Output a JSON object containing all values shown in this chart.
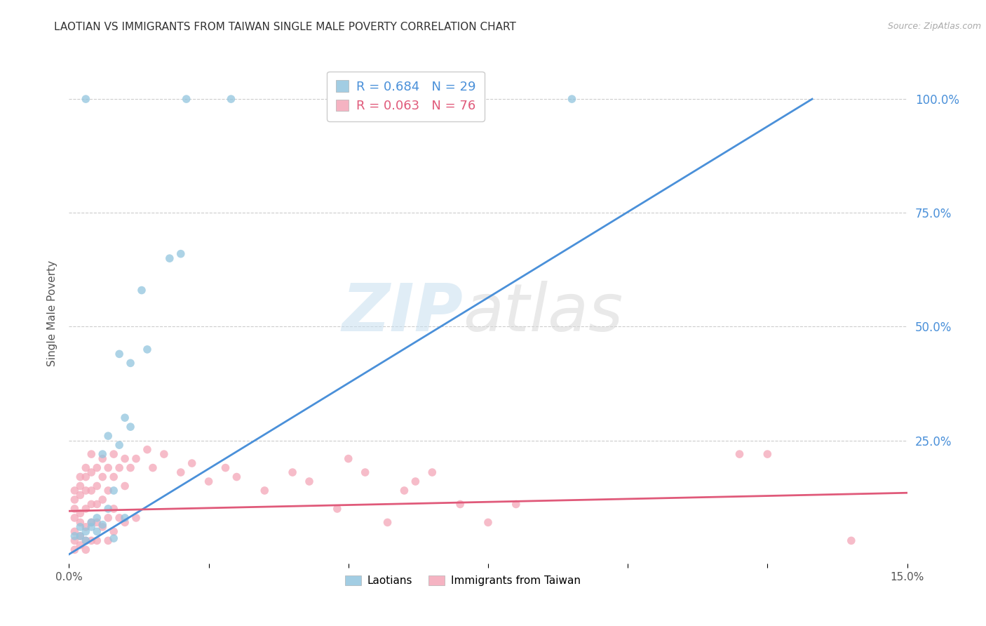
{
  "title": "LAOTIAN VS IMMIGRANTS FROM TAIWAN SINGLE MALE POVERTY CORRELATION CHART",
  "source": "Source: ZipAtlas.com",
  "ylabel": "Single Male Poverty",
  "ytick_labels": [
    "100.0%",
    "75.0%",
    "50.0%",
    "25.0%"
  ],
  "ytick_values": [
    1.0,
    0.75,
    0.5,
    0.25
  ],
  "xlim": [
    0.0,
    0.15
  ],
  "ylim": [
    -0.02,
    1.08
  ],
  "legend": {
    "blue_R": "R = 0.684",
    "blue_N": "N = 29",
    "pink_R": "R = 0.063",
    "pink_N": "N = 76",
    "label1": "Laotians",
    "label2": "Immigrants from Taiwan"
  },
  "blue_scatter": [
    [
      0.001,
      0.04
    ],
    [
      0.002,
      0.06
    ],
    [
      0.002,
      0.04
    ],
    [
      0.003,
      0.05
    ],
    [
      0.003,
      0.03
    ],
    [
      0.003,
      1.0
    ],
    [
      0.004,
      0.07
    ],
    [
      0.004,
      0.06
    ],
    [
      0.005,
      0.05
    ],
    [
      0.005,
      0.08
    ],
    [
      0.006,
      0.065
    ],
    [
      0.006,
      0.22
    ],
    [
      0.007,
      0.1
    ],
    [
      0.007,
      0.26
    ],
    [
      0.008,
      0.035
    ],
    [
      0.008,
      0.14
    ],
    [
      0.009,
      0.44
    ],
    [
      0.009,
      0.24
    ],
    [
      0.01,
      0.3
    ],
    [
      0.01,
      0.08
    ],
    [
      0.011,
      0.42
    ],
    [
      0.011,
      0.28
    ],
    [
      0.013,
      0.58
    ],
    [
      0.014,
      0.45
    ],
    [
      0.018,
      0.65
    ],
    [
      0.02,
      0.66
    ],
    [
      0.021,
      1.0
    ],
    [
      0.029,
      1.0
    ],
    [
      0.09,
      1.0
    ]
  ],
  "pink_scatter": [
    [
      0.001,
      0.14
    ],
    [
      0.001,
      0.12
    ],
    [
      0.001,
      0.1
    ],
    [
      0.001,
      0.08
    ],
    [
      0.001,
      0.05
    ],
    [
      0.001,
      0.03
    ],
    [
      0.001,
      0.01
    ],
    [
      0.002,
      0.17
    ],
    [
      0.002,
      0.15
    ],
    [
      0.002,
      0.13
    ],
    [
      0.002,
      0.09
    ],
    [
      0.002,
      0.07
    ],
    [
      0.002,
      0.04
    ],
    [
      0.002,
      0.02
    ],
    [
      0.003,
      0.19
    ],
    [
      0.003,
      0.17
    ],
    [
      0.003,
      0.14
    ],
    [
      0.003,
      0.1
    ],
    [
      0.003,
      0.06
    ],
    [
      0.003,
      0.03
    ],
    [
      0.003,
      0.01
    ],
    [
      0.004,
      0.22
    ],
    [
      0.004,
      0.18
    ],
    [
      0.004,
      0.14
    ],
    [
      0.004,
      0.11
    ],
    [
      0.004,
      0.07
    ],
    [
      0.004,
      0.03
    ],
    [
      0.005,
      0.19
    ],
    [
      0.005,
      0.15
    ],
    [
      0.005,
      0.11
    ],
    [
      0.005,
      0.07
    ],
    [
      0.005,
      0.03
    ],
    [
      0.006,
      0.21
    ],
    [
      0.006,
      0.17
    ],
    [
      0.006,
      0.12
    ],
    [
      0.006,
      0.06
    ],
    [
      0.007,
      0.19
    ],
    [
      0.007,
      0.14
    ],
    [
      0.007,
      0.08
    ],
    [
      0.007,
      0.03
    ],
    [
      0.008,
      0.22
    ],
    [
      0.008,
      0.17
    ],
    [
      0.008,
      0.1
    ],
    [
      0.008,
      0.05
    ],
    [
      0.009,
      0.19
    ],
    [
      0.009,
      0.08
    ],
    [
      0.01,
      0.21
    ],
    [
      0.01,
      0.15
    ],
    [
      0.01,
      0.07
    ],
    [
      0.011,
      0.19
    ],
    [
      0.012,
      0.21
    ],
    [
      0.012,
      0.08
    ],
    [
      0.014,
      0.23
    ],
    [
      0.015,
      0.19
    ],
    [
      0.017,
      0.22
    ],
    [
      0.02,
      0.18
    ],
    [
      0.022,
      0.2
    ],
    [
      0.025,
      0.16
    ],
    [
      0.028,
      0.19
    ],
    [
      0.03,
      0.17
    ],
    [
      0.035,
      0.14
    ],
    [
      0.04,
      0.18
    ],
    [
      0.043,
      0.16
    ],
    [
      0.048,
      0.1
    ],
    [
      0.05,
      0.21
    ],
    [
      0.053,
      0.18
    ],
    [
      0.057,
      0.07
    ],
    [
      0.06,
      0.14
    ],
    [
      0.062,
      0.16
    ],
    [
      0.065,
      0.18
    ],
    [
      0.07,
      0.11
    ],
    [
      0.075,
      0.07
    ],
    [
      0.08,
      0.11
    ],
    [
      0.12,
      0.22
    ],
    [
      0.125,
      0.22
    ],
    [
      0.14,
      0.03
    ]
  ],
  "blue_line_x": [
    0.0,
    0.133
  ],
  "blue_line_y": [
    0.0,
    1.0
  ],
  "pink_line_x": [
    0.0,
    0.15
  ],
  "pink_line_y": [
    0.095,
    0.135
  ],
  "blue_color": "#92c5de",
  "pink_color": "#f4a6b8",
  "blue_line_color": "#4a90d9",
  "pink_line_color": "#e05a7a",
  "watermark_zip": "ZIP",
  "watermark_atlas": "atlas",
  "background_color": "#ffffff",
  "title_fontsize": 11,
  "marker_size": 70
}
